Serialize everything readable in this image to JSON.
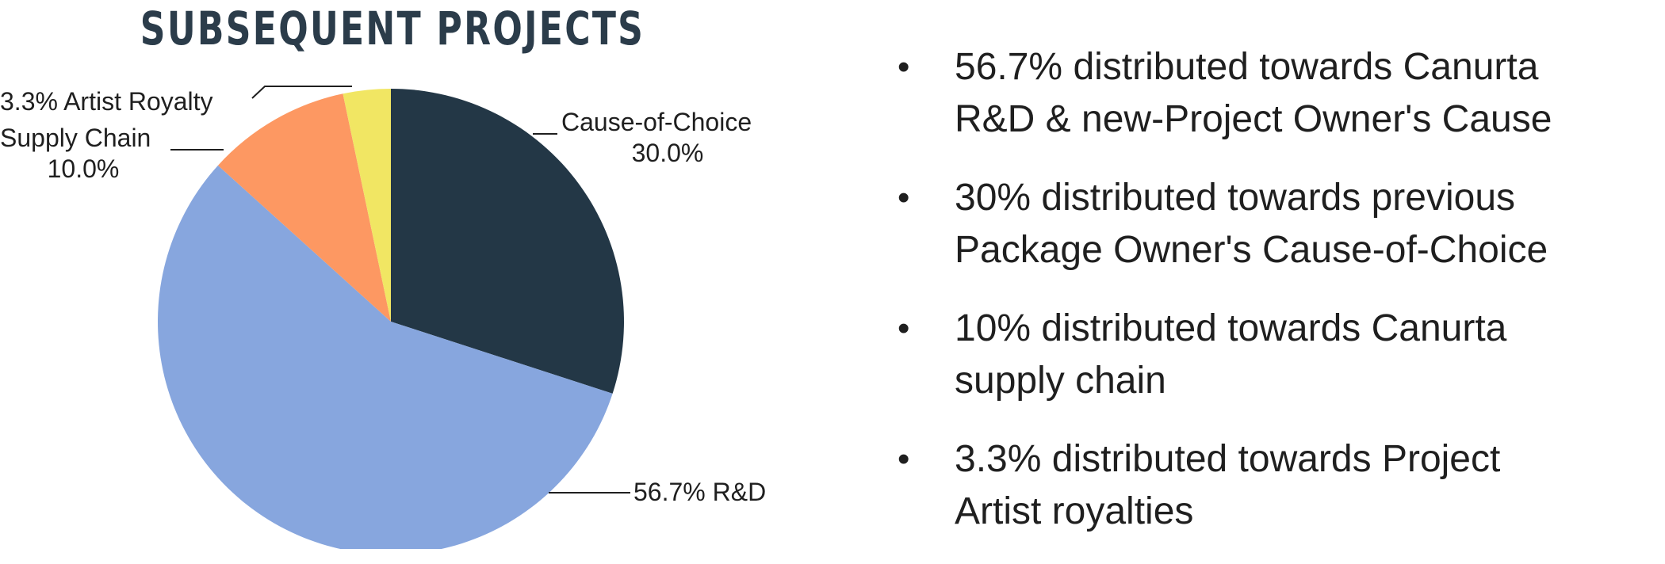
{
  "chart_data": {
    "type": "pie",
    "title": "SUBSEQUENT PROJECTS",
    "slices": [
      {
        "label": "Cause-of-Choice",
        "value": 30.0,
        "value_text": "30.0%",
        "color": "#233746"
      },
      {
        "label": "R&D",
        "value": 56.7,
        "value_text": "56.7% R&D",
        "color": "#87a6de"
      },
      {
        "label": "Supply Chain",
        "value": 10.0,
        "value_text": "10.0%",
        "color": "#fd9862"
      },
      {
        "label": "Artist Royalty",
        "value": 3.3,
        "value_text": "3.3% Artist Royalty",
        "color": "#f1e663"
      }
    ],
    "start": "12 o'clock",
    "direction": "clockwise"
  },
  "bullets": [
    {
      "line1": "56.7% distributed towards Canurta",
      "line2": "R&D & new-Project Owner's Cause"
    },
    {
      "line1": "30% distributed towards previous",
      "line2": "Package Owner's Cause-of-Choice"
    },
    {
      "line1": "10% distributed towards Canurta",
      "line2": "supply chain"
    },
    {
      "line1": "3.3% distributed towards Project",
      "line2": "Artist royalties"
    }
  ],
  "bullet_symbol": "•"
}
